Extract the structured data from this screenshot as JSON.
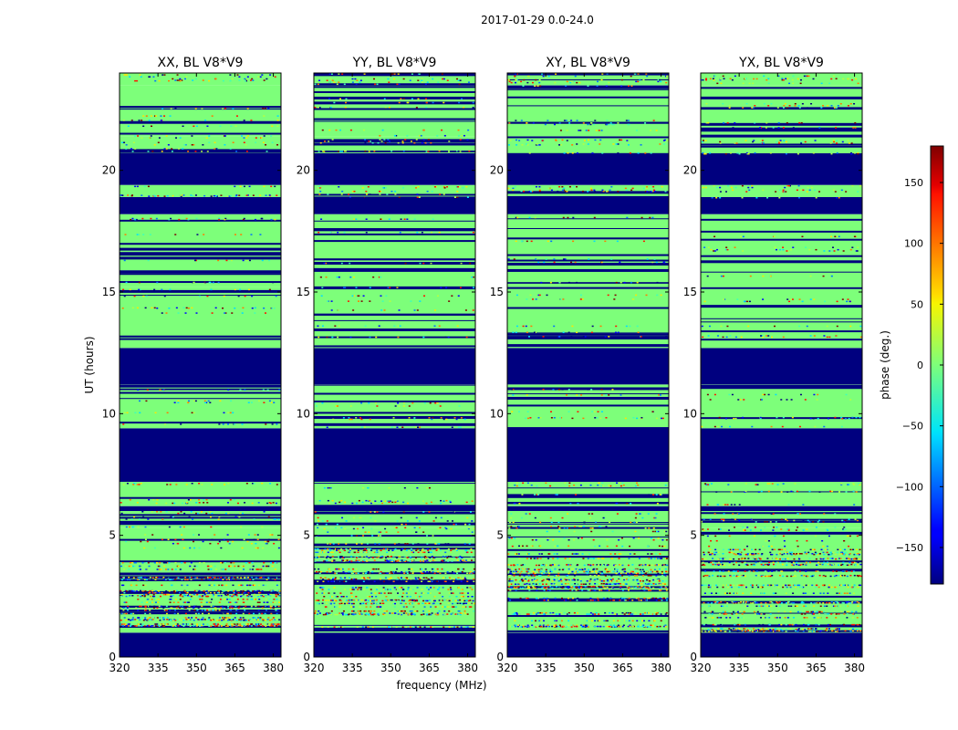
{
  "chart_data": {
    "type": "heatmap",
    "title": "2017-01-29 0.0-24.0",
    "xlabel": "frequency (MHz)",
    "ylabel": "UT (hours)",
    "xlim": [
      320,
      383
    ],
    "ylim": [
      0,
      24
    ],
    "xticks": [
      "320",
      "335",
      "350",
      "365",
      "380"
    ],
    "yticks": [
      "0",
      "5",
      "10",
      "15",
      "20"
    ],
    "panels": [
      {
        "title": "XX, BL V8*V9"
      },
      {
        "title": "YY, BL V8*V9"
      },
      {
        "title": "XY, BL V8*V9"
      },
      {
        "title": "YX, BL V8*V9"
      }
    ],
    "colorbar": {
      "label": "phase (deg.)",
      "range": [
        -180,
        180
      ],
      "ticks": [
        "150",
        "100",
        "50",
        "0",
        "−50",
        "−100",
        "−150"
      ],
      "colormap": "jet"
    },
    "bands": [
      {
        "start": 0.0,
        "end": 1.0,
        "state": "flagged"
      },
      {
        "start": 1.0,
        "end": 4.5,
        "state": "noisy"
      },
      {
        "start": 4.5,
        "end": 5.3,
        "state": "valid"
      },
      {
        "start": 5.3,
        "end": 6.0,
        "state": "valid"
      },
      {
        "start": 6.0,
        "end": 6.2,
        "state": "flagged"
      },
      {
        "start": 6.2,
        "end": 7.2,
        "state": "valid"
      },
      {
        "start": 7.2,
        "end": 9.4,
        "state": "flagged"
      },
      {
        "start": 9.4,
        "end": 11.2,
        "state": "valid"
      },
      {
        "start": 11.2,
        "end": 12.7,
        "state": "flagged"
      },
      {
        "start": 12.7,
        "end": 15.2,
        "state": "valid"
      },
      {
        "start": 15.2,
        "end": 18.2,
        "state": "valid"
      },
      {
        "start": 18.2,
        "end": 18.9,
        "state": "flagged"
      },
      {
        "start": 18.9,
        "end": 19.4,
        "state": "valid"
      },
      {
        "start": 19.4,
        "end": 20.7,
        "state": "flagged"
      },
      {
        "start": 20.7,
        "end": 21.4,
        "state": "valid"
      },
      {
        "start": 21.4,
        "end": 23.5,
        "state": "valid"
      },
      {
        "start": 23.5,
        "end": 24.0,
        "state": "valid"
      }
    ],
    "colors": {
      "flagged": "#00007f",
      "valid": "#7dff7a"
    }
  }
}
